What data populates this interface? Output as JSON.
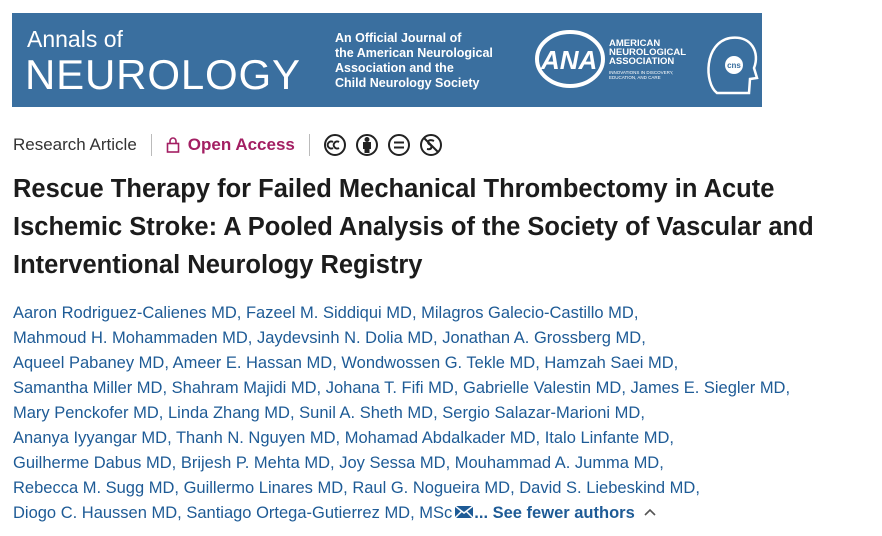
{
  "banner": {
    "journal_small": "Annals of",
    "journal_large": "NEUROLOGY",
    "statement_lines": [
      "An Official Journal of",
      "the American Neurological",
      "Association and the",
      "Child Neurology Society"
    ],
    "ana_logo": "ANA",
    "ana_name_lines": [
      "AMERICAN",
      "NEUROLOGICAL",
      "ASSOCIATION"
    ],
    "ana_tagline_lines": [
      "INNOVATIONS IN DISCOVERY,",
      "EDUCATION, AND CARE"
    ],
    "cns_logo": "cns"
  },
  "meta": {
    "article_type": "Research Article",
    "access": "Open Access"
  },
  "title": "Rescue Therapy for Failed Mechanical Thrombectomy in Acute Ischemic Stroke: A Pooled Analysis of the Society of Vascular and Interventional Neurology Registry",
  "authors": {
    "separator": ",",
    "lines": [
      [
        "Aaron Rodriguez-Calienes MD",
        "Fazeel M. Siddiqui MD",
        "Milagros Galecio-Castillo MD"
      ],
      [
        "Mahmoud H. Mohammaden MD",
        "Jaydevsinh N. Dolia MD",
        "Jonathan A. Grossberg MD"
      ],
      [
        "Aqueel Pabaney MD",
        "Ameer E. Hassan MD",
        "Wondwossen G. Tekle MD",
        "Hamzah Saei MD"
      ],
      [
        "Samantha Miller MD",
        "Shahram Majidi MD",
        "Johana T. Fifi MD",
        "Gabrielle Valestin MD",
        "James E. Siegler MD"
      ],
      [
        "Mary Penckofer MD",
        "Linda Zhang MD",
        "Sunil A. Sheth MD",
        "Sergio Salazar-Marioni MD"
      ],
      [
        "Ananya Iyyangar MD",
        "Thanh N. Nguyen MD",
        "Mohamad Abdalkader MD",
        "Italo Linfante MD"
      ],
      [
        "Guilherme Dabus MD",
        "Brijesh P. Mehta MD",
        "Joy Sessa MD",
        "Mouhammad A. Jumma MD"
      ],
      [
        "Rebecca M. Sugg MD",
        "Guillermo Linares MD",
        "Raul G. Nogueira MD",
        "David S. Liebeskind MD"
      ],
      [
        "Diogo C. Haussen MD",
        "Santiago Ortega-Gutierrez MD, MSc"
      ]
    ],
    "toggle": "... See fewer authors"
  }
}
